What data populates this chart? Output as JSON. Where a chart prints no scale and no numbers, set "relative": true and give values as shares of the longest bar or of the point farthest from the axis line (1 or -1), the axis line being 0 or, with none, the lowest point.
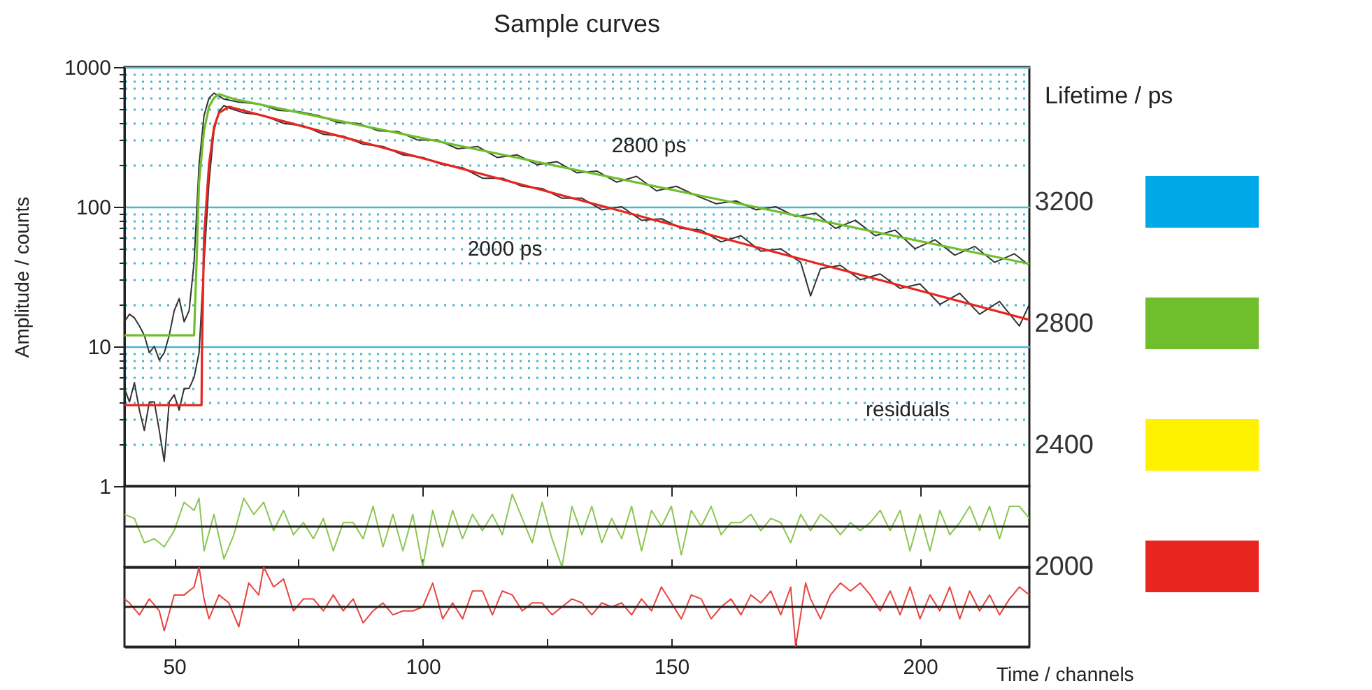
{
  "chart_data": [
    {
      "type": "line",
      "title": "Sample curves",
      "ylabel": "Amplitude / counts",
      "legend_title": "Lifetime / ps",
      "legend": "right",
      "log": true,
      "grid": "y",
      "tick_labels": "y",
      "xlim": [
        40,
        222
      ],
      "xticks": [
        50,
        {
          "value": 75,
          "label": null
        },
        100,
        {
          "value": 125,
          "label": null
        },
        150,
        {
          "value": 175,
          "label": null
        },
        200
      ],
      "ylim": [
        1,
        1000
      ],
      "yticks": [
        1,
        {
          "value": 2,
          "label": null
        },
        {
          "value": 3,
          "label": null
        },
        {
          "value": 4,
          "label": null
        },
        {
          "value": 5,
          "label": null
        },
        {
          "value": 6,
          "label": null
        },
        {
          "value": 7,
          "label": null
        },
        {
          "value": 8,
          "label": null
        },
        {
          "value": 9,
          "label": null
        },
        10,
        {
          "value": 20,
          "label": null
        },
        {
          "value": 30,
          "label": null
        },
        {
          "value": 40,
          "label": null
        },
        {
          "value": 50,
          "label": null
        },
        {
          "value": 60,
          "label": null
        },
        {
          "value": 70,
          "label": null
        },
        {
          "value": 80,
          "label": null
        },
        {
          "value": 90,
          "label": null
        },
        100,
        {
          "value": 200,
          "label": null
        },
        {
          "value": 300,
          "label": null
        },
        {
          "value": 400,
          "label": null
        },
        {
          "value": 500,
          "label": null
        },
        {
          "value": 600,
          "label": null
        },
        {
          "value": 700,
          "label": null
        },
        {
          "value": 800,
          "label": null
        },
        {
          "value": 900,
          "label": null
        },
        1000
      ],
      "annotations": [
        "2800 ps",
        "2000 ps",
        "residuals"
      ],
      "series": [
        {
          "name": "3200",
          "color": "#00a8e8"
        },
        {
          "color": "#333333",
          "x": [
            40,
            41,
            42,
            43,
            44,
            45,
            46,
            47,
            48,
            49,
            50,
            51,
            52,
            53,
            54,
            55,
            56,
            57,
            58,
            59,
            60,
            63,
            67,
            71,
            75,
            79,
            83,
            87,
            91,
            95,
            99,
            103,
            107,
            111,
            115,
            119,
            123,
            127,
            131,
            135,
            139,
            143,
            147,
            151,
            155,
            159,
            163,
            167,
            171,
            175,
            179,
            183,
            187,
            191,
            195,
            199,
            203,
            207,
            211,
            215,
            219,
            222
          ],
          "values": [
            15,
            17,
            16,
            14,
            12,
            9,
            10,
            8,
            9,
            12,
            18,
            22,
            15,
            18,
            40,
            200,
            450,
            600,
            650,
            620,
            590,
            560,
            545,
            490,
            480,
            450,
            400,
            395,
            350,
            345,
            300,
            300,
            260,
            270,
            225,
            235,
            200,
            210,
            175,
            180,
            150,
            165,
            130,
            140,
            120,
            105,
            110,
            95,
            100,
            85,
            90,
            70,
            80,
            62,
            68,
            50,
            58,
            45,
            52,
            40,
            46,
            38
          ]
        },
        {
          "color": "#333333",
          "x": [
            40,
            41,
            42,
            43,
            44,
            45,
            46,
            47,
            48,
            49,
            50,
            51,
            52,
            53,
            54,
            55,
            56,
            57,
            58,
            59,
            60,
            61,
            64,
            68,
            72,
            76,
            80,
            84,
            88,
            92,
            96,
            100,
            104,
            108,
            112,
            116,
            120,
            124,
            128,
            132,
            136,
            140,
            144,
            148,
            152,
            156,
            160,
            164,
            168,
            172,
            176,
            178,
            180,
            184,
            188,
            192,
            196,
            200,
            204,
            208,
            212,
            216,
            220,
            222
          ],
          "values": [
            5,
            4,
            5.5,
            3.5,
            2.5,
            4,
            4,
            2.5,
            1.5,
            4,
            4.5,
            3.5,
            5,
            5,
            6,
            9,
            40,
            150,
            350,
            480,
            530,
            510,
            470,
            450,
            395,
            380,
            330,
            320,
            280,
            270,
            235,
            225,
            200,
            190,
            160,
            160,
            140,
            135,
            115,
            115,
            95,
            100,
            80,
            82,
            70,
            68,
            56,
            62,
            48,
            50,
            40,
            23,
            36,
            38,
            30,
            33,
            26,
            28,
            20,
            24,
            17,
            21,
            14,
            20
          ]
        },
        {
          "name": "2800",
          "color": "#6fbe2c",
          "x": [
            40,
            54,
            54.5,
            55,
            56,
            57,
            58,
            59,
            62,
            222
          ],
          "values": [
            12,
            12,
            40,
            150,
            350,
            520,
            600,
            640,
            590,
            39
          ]
        },
        {
          "name": "2400",
          "color": "#fff200"
        },
        {
          "name": "2000",
          "color": "#e8251f",
          "x": [
            40,
            55.5,
            55.6,
            56,
            57,
            58,
            59,
            61,
            222
          ],
          "values": [
            3.8,
            3.8,
            10,
            60,
            200,
            370,
            470,
            520,
            15.5
          ]
        }
      ]
    },
    {
      "type": "line",
      "relative": true,
      "tick_labels": false,
      "xlim": [
        40,
        222
      ],
      "xticks": [
        50,
        75,
        100,
        125,
        150,
        175,
        200
      ],
      "series": [
        {
          "color": "#8cc653",
          "x": [
            40,
            42,
            44,
            46,
            48,
            50,
            52,
            54,
            55,
            56,
            58,
            60,
            62,
            64,
            66,
            68,
            70,
            72,
            74,
            76,
            78,
            80,
            82,
            84,
            86,
            88,
            90,
            92,
            94,
            96,
            98,
            100,
            102,
            104,
            106,
            108,
            110,
            112,
            114,
            116,
            118,
            120,
            122,
            124,
            126,
            128,
            130,
            132,
            134,
            136,
            138,
            140,
            142,
            144,
            146,
            148,
            150,
            152,
            154,
            156,
            158,
            160,
            162,
            164,
            166,
            168,
            170,
            172,
            174,
            176,
            178,
            180,
            182,
            184,
            186,
            188,
            190,
            192,
            194,
            196,
            198,
            200,
            202,
            204,
            206,
            208,
            210,
            212,
            214,
            216,
            218,
            220,
            222
          ],
          "values": [
            0.3,
            0.2,
            -0.4,
            -0.3,
            -0.5,
            -0.1,
            0.6,
            0.4,
            0.7,
            -0.6,
            0.3,
            -0.8,
            -0.2,
            0.7,
            0.3,
            0.6,
            -0.1,
            0.4,
            -0.2,
            0.1,
            -0.3,
            0.2,
            -0.6,
            0.1,
            0.1,
            -0.3,
            0.5,
            -0.5,
            0.3,
            -0.6,
            0.3,
            -1,
            0.4,
            -0.5,
            0.4,
            -0.3,
            0.3,
            -0.1,
            0.3,
            -0.2,
            0.8,
            0.2,
            -0.4,
            0.6,
            -0.3,
            -1,
            0.5,
            -0.2,
            0.5,
            -0.4,
            0.2,
            -0.3,
            0.5,
            -0.6,
            0.4,
            0,
            0.5,
            -0.7,
            0.4,
            0,
            0.5,
            -0.2,
            0.1,
            0.1,
            0.3,
            -0.1,
            0.2,
            0.1,
            -0.4,
            0.3,
            -0.1,
            0.3,
            0.1,
            -0.2,
            0.1,
            -0.1,
            0.1,
            0.4,
            -0.1,
            0.4,
            -0.6,
            0.3,
            -0.6,
            0.4,
            -0.2,
            0.1,
            0.5,
            -0.1,
            0.5,
            -0.3,
            0.5,
            0.5,
            0.2
          ]
        }
      ]
    },
    {
      "type": "line",
      "relative": true,
      "tick_labels": "x",
      "xlabel": "Time / channels",
      "xlim": [
        40,
        222
      ],
      "xticks": [
        50,
        {
          "value": 75,
          "label": null
        },
        100,
        {
          "value": 125,
          "label": null
        },
        150,
        {
          "value": 175,
          "label": null
        },
        200
      ],
      "series": [
        {
          "color": "#e8453f",
          "x": [
            40,
            41,
            43,
            45,
            47,
            48,
            50,
            52,
            54,
            55,
            56,
            57,
            59,
            61,
            63,
            65,
            67,
            68,
            70,
            72,
            74,
            76,
            78,
            80,
            82,
            84,
            86,
            88,
            90,
            92,
            94,
            96,
            98,
            100,
            102,
            104,
            106,
            108,
            110,
            112,
            114,
            116,
            118,
            120,
            122,
            124,
            126,
            128,
            130,
            132,
            134,
            136,
            138,
            140,
            142,
            144,
            146,
            148,
            150,
            152,
            154,
            156,
            158,
            160,
            162,
            164,
            166,
            168,
            170,
            172,
            174,
            175,
            177,
            178,
            180,
            182,
            184,
            186,
            188,
            190,
            192,
            194,
            196,
            198,
            200,
            202,
            204,
            206,
            208,
            210,
            212,
            214,
            216,
            218,
            220,
            222
          ],
          "values": [
            0.2,
            0.1,
            -0.2,
            0.2,
            -0.1,
            -0.6,
            0.3,
            0.3,
            0.5,
            1,
            0.2,
            -0.3,
            0.3,
            0.1,
            -0.5,
            0.6,
            0.3,
            1,
            0.5,
            0.7,
            -0.1,
            0.2,
            0.2,
            -0.1,
            0.3,
            -0.1,
            0.2,
            -0.4,
            -0.1,
            0.1,
            -0.2,
            -0.1,
            -0.1,
            0,
            0.6,
            -0.3,
            0.1,
            -0.3,
            0.4,
            0.4,
            -0.2,
            0.4,
            0.3,
            -0.1,
            0.1,
            0.1,
            -0.2,
            0,
            0.2,
            0.1,
            -0.2,
            0.1,
            0,
            0.1,
            -0.2,
            0.2,
            -0.1,
            0.5,
            0.1,
            -0.3,
            0.3,
            0.2,
            -0.3,
            0,
            0.2,
            -0.2,
            0.3,
            0.1,
            0.4,
            -0.2,
            0.5,
            -1,
            0.6,
            0.2,
            -0.3,
            0.3,
            0.6,
            0.4,
            0.6,
            0.3,
            -0.1,
            0.4,
            -0.2,
            0.5,
            -0.3,
            0.3,
            -0.1,
            0.5,
            -0.3,
            0.4,
            -0.1,
            0.3,
            -0.2,
            0.2,
            0.5,
            0.3
          ]
        }
      ]
    }
  ]
}
